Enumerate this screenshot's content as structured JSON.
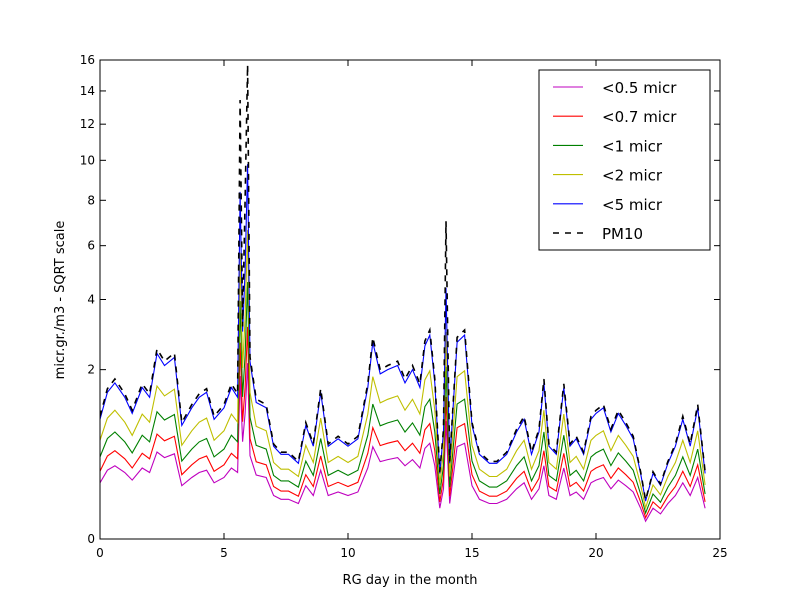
{
  "chart_data": {
    "type": "line",
    "xlabel": "RG day in the month",
    "ylabel": "micr.gr./m3 - SQRT scale",
    "xlim": [
      0,
      25
    ],
    "ylim": [
      0,
      16
    ],
    "y_scale": "sqrt",
    "x_ticks": [
      0,
      5,
      10,
      15,
      20,
      25
    ],
    "y_ticks": [
      0,
      2,
      4,
      6,
      8,
      10,
      12,
      14,
      16
    ],
    "grid": false,
    "legend_position": "top-right",
    "baseline_points": [
      [
        0,
        1.0
      ],
      [
        0.3,
        1.5
      ],
      [
        0.6,
        1.7
      ],
      [
        1.0,
        1.4
      ],
      [
        1.3,
        1.1
      ],
      [
        1.7,
        1.6
      ],
      [
        2.0,
        1.4
      ],
      [
        2.3,
        2.4
      ],
      [
        2.6,
        2.1
      ],
      [
        3.0,
        2.3
      ],
      [
        3.3,
        0.9
      ],
      [
        3.7,
        1.2
      ],
      [
        4.0,
        1.4
      ],
      [
        4.3,
        1.5
      ],
      [
        4.6,
        1.0
      ],
      [
        5.0,
        1.2
      ],
      [
        5.3,
        1.6
      ],
      [
        5.55,
        1.4
      ],
      [
        5.65,
        8.4
      ],
      [
        5.75,
        3.0
      ],
      [
        5.85,
        5.0
      ],
      [
        5.95,
        9.8
      ],
      [
        6.05,
        2.2
      ],
      [
        6.3,
        1.3
      ],
      [
        6.7,
        1.2
      ],
      [
        7.0,
        0.6
      ],
      [
        7.3,
        0.5
      ],
      [
        7.6,
        0.5
      ],
      [
        8.0,
        0.4
      ],
      [
        8.3,
        0.9
      ],
      [
        8.6,
        0.6
      ],
      [
        8.9,
        1.5
      ],
      [
        9.2,
        0.6
      ],
      [
        9.6,
        0.7
      ],
      [
        10.0,
        0.6
      ],
      [
        10.4,
        0.7
      ],
      [
        10.8,
        1.6
      ],
      [
        11.0,
        2.7
      ],
      [
        11.3,
        1.9
      ],
      [
        11.6,
        2.0
      ],
      [
        12.0,
        2.1
      ],
      [
        12.3,
        1.7
      ],
      [
        12.6,
        2.0
      ],
      [
        12.9,
        1.6
      ],
      [
        13.1,
        2.6
      ],
      [
        13.3,
        2.9
      ],
      [
        13.5,
        1.7
      ],
      [
        13.7,
        0.3
      ],
      [
        13.85,
        0.8
      ],
      [
        13.95,
        4.4
      ],
      [
        14.1,
        0.4
      ],
      [
        14.4,
        2.7
      ],
      [
        14.7,
        2.9
      ],
      [
        15.0,
        0.9
      ],
      [
        15.3,
        0.5
      ],
      [
        15.7,
        0.4
      ],
      [
        16.0,
        0.4
      ],
      [
        16.4,
        0.5
      ],
      [
        16.8,
        0.8
      ],
      [
        17.1,
        1.0
      ],
      [
        17.4,
        0.5
      ],
      [
        17.7,
        0.8
      ],
      [
        17.9,
        1.7
      ],
      [
        18.1,
        0.6
      ],
      [
        18.4,
        0.5
      ],
      [
        18.7,
        1.6
      ],
      [
        18.95,
        0.6
      ],
      [
        19.2,
        0.7
      ],
      [
        19.5,
        0.5
      ],
      [
        19.8,
        1.0
      ],
      [
        20.0,
        1.1
      ],
      [
        20.3,
        1.2
      ],
      [
        20.6,
        0.8
      ],
      [
        20.9,
        1.1
      ],
      [
        21.2,
        0.9
      ],
      [
        21.5,
        0.7
      ],
      [
        21.8,
        0.3
      ],
      [
        22.0,
        0.1
      ],
      [
        22.3,
        0.3
      ],
      [
        22.6,
        0.2
      ],
      [
        22.9,
        0.4
      ],
      [
        23.2,
        0.6
      ],
      [
        23.5,
        1.0
      ],
      [
        23.8,
        0.6
      ],
      [
        24.1,
        1.2
      ],
      [
        24.4,
        0.3
      ]
    ],
    "series": [
      {
        "name": "<0.5 micr",
        "color": "#bf00bf",
        "factor": 0.22,
        "dashed": false
      },
      {
        "name": "<0.7 micr",
        "color": "#ff0000",
        "factor": 0.32,
        "dashed": false
      },
      {
        "name": "<1 micr",
        "color": "#008000",
        "factor": 0.47,
        "dashed": false
      },
      {
        "name": "<2 micr",
        "color": "#bfbf00",
        "factor": 0.68,
        "dashed": false
      },
      {
        "name": "<5 micr",
        "color": "#0000ff",
        "factor": 1.0,
        "dashed": false
      },
      {
        "name": "PM10",
        "color": "#000000",
        "factor": 1.05,
        "dashed": true
      }
    ]
  }
}
